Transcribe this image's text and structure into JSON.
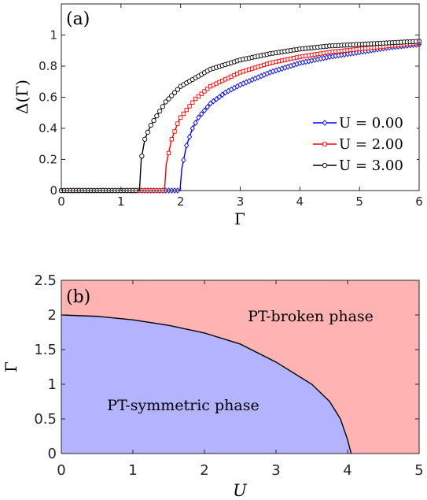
{
  "chart_data": [
    {
      "type": "line",
      "panel_label": "(a)",
      "xlabel": "Γ",
      "ylabel": "Δ(Γ)",
      "xlim": [
        0,
        6
      ],
      "ylim": [
        0,
        1.2
      ],
      "xticks": [
        0,
        1,
        2,
        3,
        4,
        5,
        6
      ],
      "yticks": [
        0,
        0.2,
        0.4,
        0.6,
        0.8,
        1
      ],
      "grid": false,
      "legend_position": "bottom-right",
      "series": [
        {
          "name": "U = 0.00",
          "color": "#0000ff",
          "marker": "diamond",
          "threshold": 2.0,
          "x": [
            0.0,
            0.5,
            1.0,
            1.5,
            1.99,
            2.02,
            2.1,
            2.2,
            2.3,
            2.5,
            2.75,
            3.0,
            3.5,
            4.0,
            4.5,
            5.0,
            5.5,
            6.0
          ],
          "y": [
            0.0,
            0.0,
            0.0,
            0.0,
            0.0,
            0.14,
            0.29,
            0.4,
            0.47,
            0.56,
            0.63,
            0.68,
            0.76,
            0.82,
            0.86,
            0.89,
            0.92,
            0.94
          ]
        },
        {
          "name": "U = 2.00",
          "color": "#ff0000",
          "marker": "square",
          "threshold": 1.74,
          "x": [
            0.0,
            0.5,
            1.0,
            1.5,
            1.73,
            1.76,
            1.85,
            1.95,
            2.0,
            2.25,
            2.5,
            3.0,
            3.5,
            4.0,
            4.5,
            5.0,
            5.5,
            6.0
          ],
          "y": [
            0.0,
            0.0,
            0.0,
            0.0,
            0.0,
            0.17,
            0.33,
            0.43,
            0.47,
            0.59,
            0.67,
            0.76,
            0.82,
            0.86,
            0.89,
            0.91,
            0.93,
            0.95
          ]
        },
        {
          "name": "U = 3.00",
          "color": "#000000",
          "marker": "circle",
          "threshold": 1.32,
          "x": [
            0.0,
            0.5,
            1.0,
            1.31,
            1.34,
            1.4,
            1.5,
            1.75,
            2.0,
            2.5,
            3.0,
            3.5,
            4.0,
            4.5,
            5.0,
            5.5,
            6.0
          ],
          "y": [
            0.0,
            0.0,
            0.0,
            0.0,
            0.2,
            0.33,
            0.42,
            0.57,
            0.67,
            0.78,
            0.84,
            0.88,
            0.91,
            0.93,
            0.94,
            0.95,
            0.96
          ]
        }
      ]
    },
    {
      "type": "area",
      "panel_label": "(b)",
      "xlabel": "U",
      "ylabel": "Γ",
      "xlim": [
        0,
        5
      ],
      "ylim": [
        0,
        2.5
      ],
      "xticks": [
        0,
        1,
        2,
        3,
        4,
        5
      ],
      "yticks": [
        0,
        0.5,
        1,
        1.5,
        2,
        2.5
      ],
      "grid": false,
      "regions": [
        {
          "name": "PT-symmetric phase",
          "color": "#b3b3ff",
          "position": "below boundary"
        },
        {
          "name": "PT-broken phase",
          "color": "#ffb3b3",
          "position": "above boundary"
        }
      ],
      "boundary": {
        "color": "#000000",
        "x": [
          0,
          0.5,
          1.0,
          1.5,
          2.0,
          2.5,
          3.0,
          3.5,
          3.75,
          3.9,
          4.0,
          4.05
        ],
        "y": [
          2.0,
          1.98,
          1.93,
          1.85,
          1.74,
          1.58,
          1.32,
          1.0,
          0.75,
          0.5,
          0.2,
          0.0
        ]
      }
    }
  ]
}
